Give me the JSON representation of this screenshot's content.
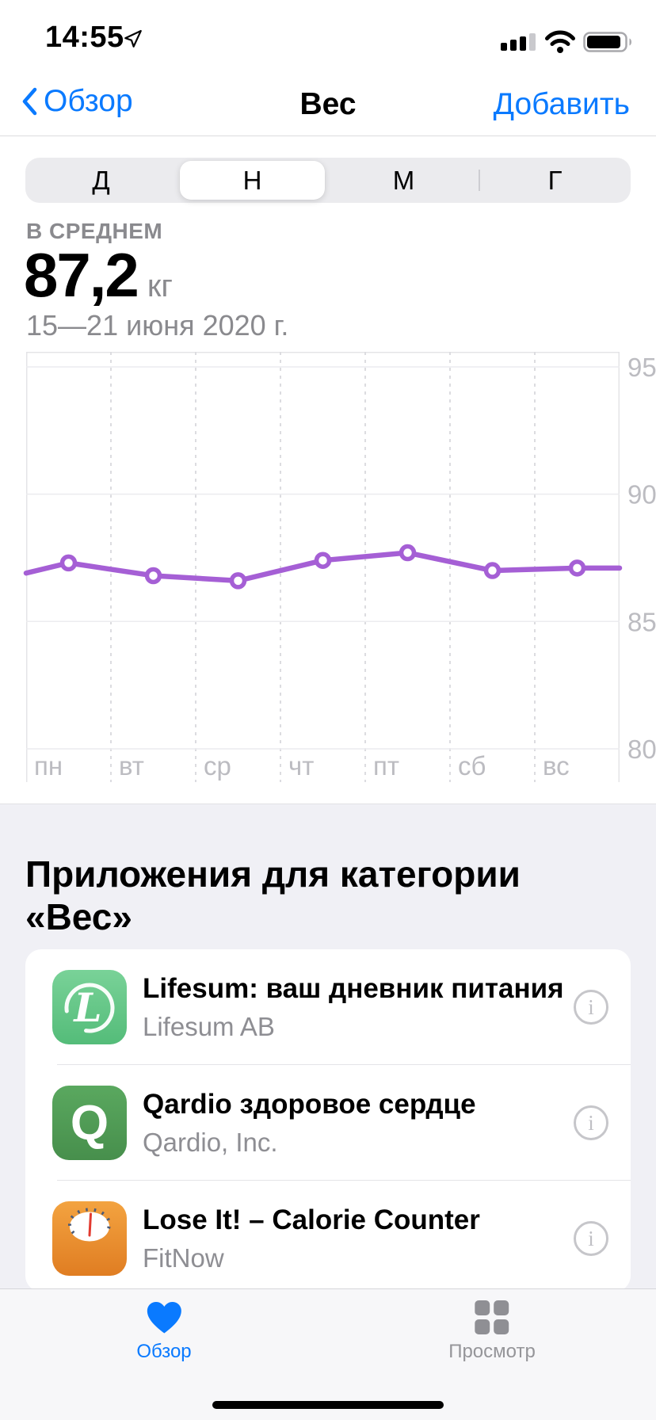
{
  "status_bar": {
    "time": "14:55",
    "location_services": "on",
    "signal_bars_filled": 3,
    "signal_bars_total": 4,
    "wifi": "full",
    "battery_fill": 0.85
  },
  "nav": {
    "back_label": "Обзор",
    "title": "Вес",
    "action_label": "Добавить"
  },
  "segmented_control": {
    "segments": [
      "Д",
      "Н",
      "М",
      "Г"
    ],
    "selected": "Н"
  },
  "summary": {
    "label": "В СРЕДНЕМ",
    "value": "87,2",
    "unit": "кг",
    "date_range": "15—21 июня 2020 г."
  },
  "chart_data": {
    "type": "line",
    "title": "Вес за неделю",
    "categories": [
      "пн",
      "вт",
      "ср",
      "чт",
      "пт",
      "сб",
      "вс"
    ],
    "values": [
      87.3,
      86.8,
      86.6,
      87.4,
      87.7,
      87.0,
      87.1
    ],
    "edge_values": {
      "start": 86.9,
      "end": 87.1
    },
    "ylim": [
      80,
      95
    ],
    "yticks": [
      95,
      90,
      85,
      80
    ],
    "ylabel": "",
    "xlabel": "",
    "unit": "кг",
    "line_color": "#A55FD5",
    "marker_style": "open-circle",
    "grid": "horizontal solid, vertical dashed per day, y labels right side",
    "legend": "none"
  },
  "apps_section": {
    "heading": "Приложения для категории «Вес»",
    "info_glyph": "i",
    "apps": [
      {
        "title": "Lifesum: ваш дневник питания",
        "subtitle": "Lifesum AB",
        "icon": "lifesum-script-l",
        "icon_letter": "L",
        "icon_color": "#5EC684"
      },
      {
        "title": "Qardio здоровое сердце",
        "subtitle": "Qardio, Inc.",
        "icon": "qardio-q",
        "icon_letter": "Q",
        "icon_color": "#509C54"
      },
      {
        "title": "Lose It! – Calorie Counter",
        "subtitle": "FitNow",
        "icon": "loseit-scale",
        "icon_letter": "",
        "icon_color": "#EC9235"
      }
    ]
  },
  "tab_bar": {
    "items": [
      {
        "label": "Обзор",
        "icon": "heart",
        "active": true
      },
      {
        "label": "Просмотр",
        "icon": "grid",
        "active": false
      }
    ]
  },
  "colors": {
    "accent_blue": "#0A7AFF",
    "chart_purple": "#A55FD5",
    "gray_text": "#8E8E93",
    "section_bg": "#F0F0F5"
  }
}
